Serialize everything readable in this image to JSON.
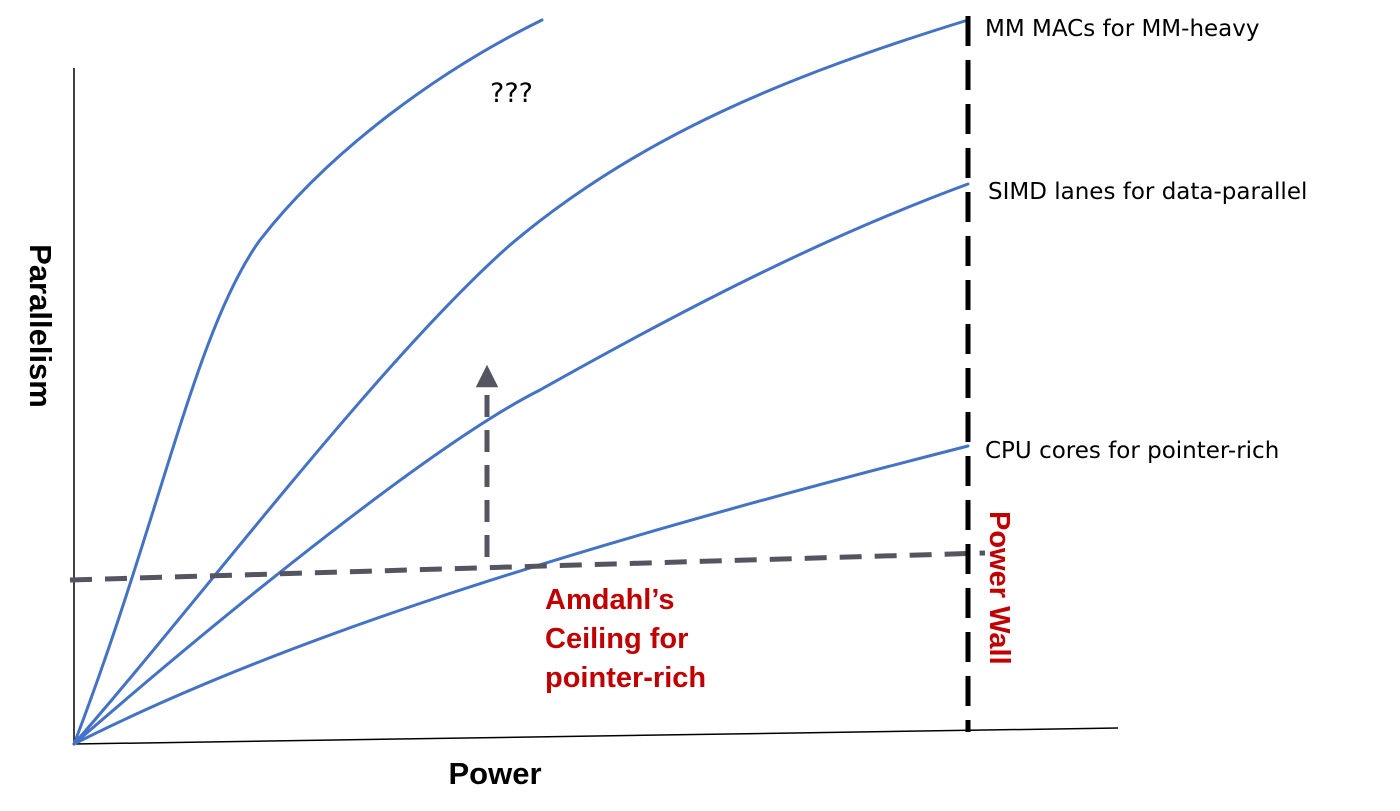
{
  "axes": {
    "x_label": "Power",
    "y_label": "Parallelism"
  },
  "curves": [
    {
      "id": "unknown",
      "label": "???"
    },
    {
      "id": "mm",
      "label": "MM MACs for MM-heavy"
    },
    {
      "id": "simd",
      "label": "SIMD lanes for data-parallel"
    },
    {
      "id": "cpu",
      "label": "CPU cores for pointer-rich"
    }
  ],
  "ceiling": {
    "label_lines": [
      "Amdahl’s",
      "Ceiling for",
      "pointer-rich"
    ]
  },
  "wall": {
    "label": "Power Wall"
  },
  "colors": {
    "curve": "#4472c4",
    "dashed_ceiling": "#555561",
    "wall": "#000000",
    "accent_red": "#c00000",
    "text": "#000000"
  }
}
